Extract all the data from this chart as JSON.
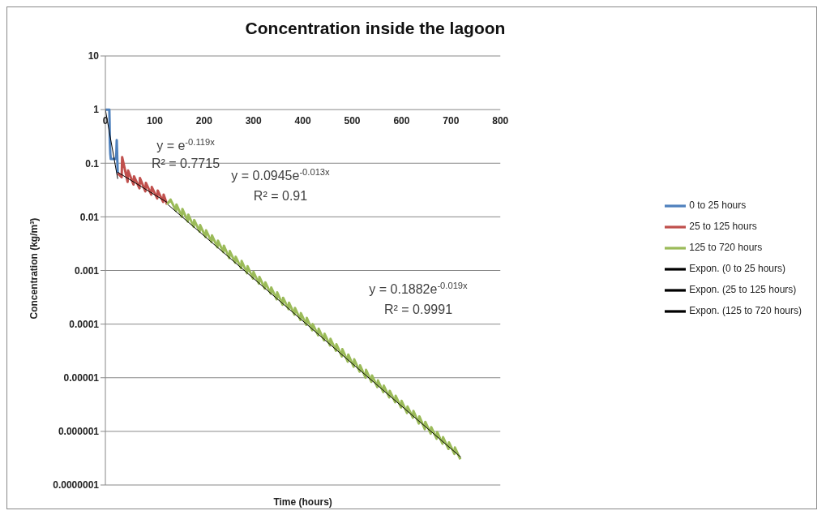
{
  "chart_data": {
    "type": "line",
    "title": "Concentration inside the lagoon",
    "xlabel": "Time (hours)",
    "ylabel": "Concentration (kg/m³)",
    "xlim": [
      0,
      800
    ],
    "xticks": [
      0,
      100,
      200,
      300,
      400,
      500,
      600,
      700,
      800
    ],
    "ylim": [
      1e-07,
      10
    ],
    "yticks": [
      10,
      1,
      0.1,
      0.01,
      0.001,
      0.0001,
      {
        "value": 1e-05,
        "label": "0.00001"
      },
      {
        "value": 1e-06,
        "label": "0.000001"
      },
      {
        "value": 1e-07,
        "label": "0.0000001"
      }
    ],
    "log": "y",
    "grid": "y",
    "legend": "right",
    "marker": "none",
    "line_style": "solid",
    "series": [
      {
        "name": "0 to 25 hours",
        "color": "#4f81bd",
        "x": [
          0,
          8,
          8.5,
          9,
          10,
          11,
          17,
          20,
          22,
          23,
          25
        ],
        "values": [
          1,
          1,
          0.6,
          0.25,
          0.15,
          0.12,
          0.12,
          0.12,
          0.13,
          0.27,
          0.065
        ]
      },
      {
        "name": "25 to 125 hours",
        "color": "#c0504d",
        "x": [
          25,
          33,
          34,
          45,
          46,
          57,
          58,
          69,
          70,
          81,
          82,
          93,
          94,
          105,
          106,
          117,
          118,
          125
        ],
        "values": [
          0.065,
          0.055,
          0.13,
          0.045,
          0.073,
          0.04,
          0.057,
          0.034,
          0.053,
          0.03,
          0.043,
          0.026,
          0.036,
          0.022,
          0.031,
          0.019,
          0.026,
          0.017
        ]
      },
      {
        "name": "125 to 720 hours",
        "color": "#9bbb59",
        "x": [
          125,
          132,
          143,
          144,
          155,
          156,
          167,
          168,
          179,
          180,
          191,
          192,
          203,
          204,
          215,
          216,
          227,
          228,
          239,
          240,
          251,
          252,
          263,
          264,
          275,
          276,
          287,
          288,
          299,
          300,
          311,
          312,
          323,
          324,
          335,
          336,
          347,
          348,
          359,
          360,
          371,
          372,
          383,
          384,
          395,
          396,
          407,
          408,
          419,
          420,
          431,
          432,
          443,
          444,
          455,
          456,
          467,
          468,
          479,
          480,
          491,
          492,
          503,
          504,
          515,
          516,
          527,
          528,
          539,
          540,
          551,
          552,
          563,
          564,
          575,
          576,
          587,
          588,
          599,
          600,
          611,
          612,
          623,
          624,
          635,
          636,
          647,
          648,
          659,
          660,
          671,
          672,
          683,
          684,
          695,
          696,
          707,
          708,
          719
        ],
        "values": [
          0.017,
          0.021,
          0.013,
          0.017,
          0.01,
          0.014,
          0.0082,
          0.011,
          0.0065,
          0.0087,
          0.0053,
          0.007,
          0.0042,
          0.0056,
          0.0034,
          0.0045,
          0.0027,
          0.0036,
          0.0022,
          0.0029,
          0.0017,
          0.0023,
          0.0014,
          0.0018,
          0.0011,
          0.0015,
          0.00089,
          0.0012,
          0.00071,
          0.00094,
          0.00057,
          0.00076,
          0.00046,
          0.0006,
          0.00037,
          0.00048,
          0.00029,
          0.00039,
          0.00023,
          0.00031,
          0.00019,
          0.00025,
          0.00015,
          0.0002,
          0.00012,
          0.00016,
          9.7e-05,
          0.00013,
          7.7e-05,
          0.0001,
          6.2e-05,
          8.2e-05,
          5e-05,
          6.6e-05,
          4e-05,
          5.3e-05,
          3.2e-05,
          4.2e-05,
          2.5e-05,
          3.4e-05,
          2e-05,
          2.7e-05,
          1.6e-05,
          2.2e-05,
          1.3e-05,
          1.7e-05,
          1e-05,
          1.4e-05,
          8.4e-06,
          1.1e-05,
          6.7e-06,
          8.9e-06,
          5.4e-06,
          7.1e-06,
          4.3e-06,
          5.7e-06,
          3.5e-06,
          4.6e-06,
          2.8e-06,
          3.7e-06,
          2.2e-06,
          2.9e-06,
          1.8e-06,
          2.4e-06,
          1.4e-06,
          1.9e-06,
          1.1e-06,
          1.5e-06,
          9.1e-07,
          1.2e-06,
          7.3e-07,
          9.7e-07,
          5.9e-07,
          7.8e-07,
          4.7e-07,
          6.2e-07,
          3.8e-07,
          5e-07,
          3e-07
        ]
      },
      {
        "name": "Expon. (0 to 25 hours)",
        "color": "#000000",
        "x": [
          0,
          25
        ],
        "values": [
          1,
          0.051
        ]
      },
      {
        "name": "Expon. (25 to 125 hours)",
        "color": "#000000",
        "x": [
          25,
          125
        ],
        "values": [
          0.068,
          0.0186
        ]
      },
      {
        "name": "Expon. (125 to 720 hours)",
        "color": "#000000",
        "x": [
          127,
          720
        ],
        "values": [
          0.0168,
          3.3e-07
        ]
      }
    ],
    "annotations": [
      "y = e$^{-0.119x}$",
      "R² = 0.7715",
      "y = 0.0945e$^{-0.013x}$",
      "R² = 0.91",
      "y = 0.1882e$^{-0.019x}$",
      "R² = 0.9991"
    ]
  }
}
